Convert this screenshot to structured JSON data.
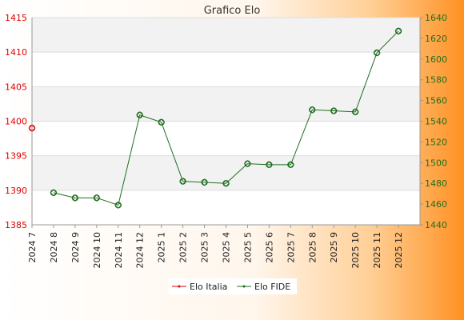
{
  "chart_data": {
    "type": "line",
    "title": "Grafico Elo",
    "categories": [
      "2024 7",
      "2024 8",
      "2024 9",
      "2024 10",
      "2024 11",
      "2024 12",
      "2025 1",
      "2025 2",
      "2025 3",
      "2025 4",
      "2025 5",
      "2025 6",
      "2025 7",
      "2025 8",
      "2025 9",
      "2025 10",
      "2025 11",
      "2025 12"
    ],
    "y_left": {
      "ticks": [
        1385,
        1390,
        1395,
        1400,
        1405,
        1410,
        1415
      ],
      "range": [
        1385,
        1415
      ],
      "color": "#e00000"
    },
    "y_right": {
      "ticks": [
        1440,
        1460,
        1480,
        1500,
        1520,
        1540,
        1560,
        1580,
        1600,
        1620,
        1640
      ],
      "range": [
        1440,
        1640
      ],
      "color": "#1f6e1f"
    },
    "series": [
      {
        "name": "Elo Italia",
        "axis": "left",
        "color": "#e00000",
        "values": [
          1399,
          null,
          null,
          null,
          null,
          null,
          null,
          null,
          null,
          null,
          null,
          null,
          null,
          null,
          null,
          null,
          null,
          null
        ]
      },
      {
        "name": "Elo FIDE",
        "axis": "right",
        "color": "#1f6e1f",
        "values": [
          null,
          1471,
          1466,
          1466,
          1459,
          1546,
          1539,
          1482,
          1481,
          1480,
          1499,
          1498,
          1498,
          1551,
          1550,
          1549,
          1606,
          1627
        ]
      }
    ],
    "grid": true,
    "legend_position": "bottom-center"
  }
}
